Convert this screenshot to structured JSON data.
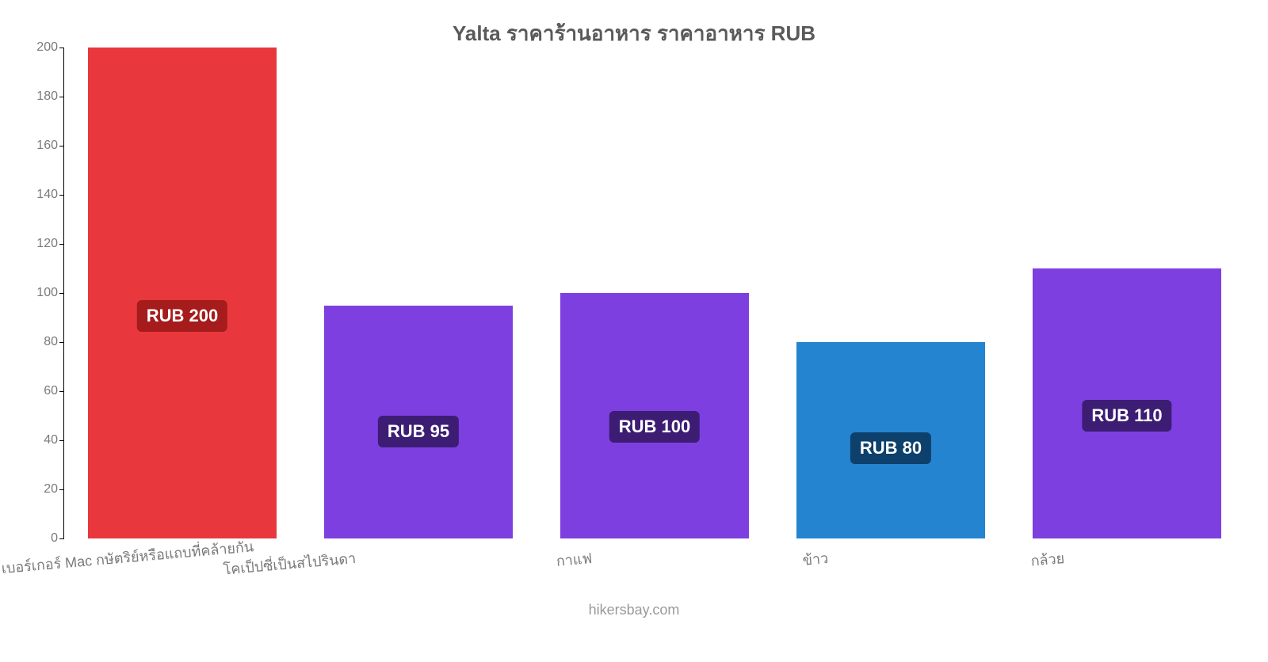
{
  "chart": {
    "type": "bar",
    "title": "Yalta ราคาร้านอาหาร ราคาอาหาร RUB",
    "title_fontsize": 26,
    "title_color": "#5a5a5a",
    "background_color": "#ffffff",
    "axis_color": "#000000",
    "ytick_label_color": "#7a7a7a",
    "xtick_label_color": "#7a7a7a",
    "ylim": [
      0,
      200
    ],
    "ytick_step": 20,
    "yticks": [
      0,
      20,
      40,
      60,
      80,
      100,
      120,
      140,
      160,
      180,
      200
    ],
    "ytick_fontsize": 16,
    "xtick_fontsize": 18,
    "xtick_rotate_deg": -5,
    "categories": [
      "เบอร์เกอร์ Mac กษัตริย์หรือแถบที่คล้ายกัน",
      "โคเป็ปซี่เป็นสไปรินดา",
      "กาแฟ",
      "ข้าว",
      "กล้วย"
    ],
    "values": [
      200,
      95,
      100,
      80,
      110
    ],
    "value_labels": [
      "RUB 200",
      "RUB 95",
      "RUB 100",
      "RUB 80",
      "RUB 110"
    ],
    "bar_colors": [
      "#e8383d",
      "#7e3fe0",
      "#7e3fe0",
      "#2484d0",
      "#7e3fe0"
    ],
    "badge_colors": [
      "#a61b1b",
      "#3c1d73",
      "#3c1d73",
      "#0d406b",
      "#3c1d73"
    ],
    "badge_fontsize": 22,
    "badge_text_color": "#ffffff",
    "bar_width_ratio": 0.8,
    "attribution": "hikersbay.com",
    "attribution_fontsize": 18,
    "attribution_color": "#9a9a9a"
  }
}
